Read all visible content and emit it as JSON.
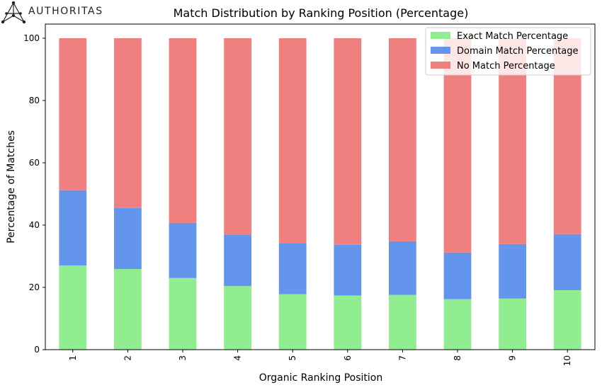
{
  "brand": {
    "name": "AUTHORITAS"
  },
  "chart_data": {
    "type": "bar",
    "stacked": true,
    "title": "Match Distribution by Ranking Position (Percentage)",
    "xlabel": "Organic Ranking Position",
    "ylabel": "Percentage of Matches",
    "categories": [
      "1",
      "2",
      "3",
      "4",
      "5",
      "6",
      "7",
      "8",
      "9",
      "10"
    ],
    "ylim": [
      0,
      100
    ],
    "yticks": [
      0,
      20,
      40,
      60,
      80,
      100
    ],
    "grid": false,
    "legend_position": "top-right",
    "series": [
      {
        "name": "Exact Match Percentage",
        "color": "#90ee90",
        "values": [
          27.0,
          25.9,
          23.0,
          20.4,
          17.8,
          17.4,
          17.6,
          16.2,
          16.4,
          19.1
        ]
      },
      {
        "name": "Domain Match Percentage",
        "color": "#6495ed",
        "values": [
          24.2,
          19.6,
          17.7,
          16.5,
          16.3,
          16.3,
          17.2,
          15.0,
          17.5,
          18.0
        ]
      },
      {
        "name": "No Match Percentage",
        "color": "#f08080",
        "values": [
          48.8,
          54.5,
          59.3,
          63.1,
          65.9,
          66.3,
          65.2,
          68.8,
          66.1,
          62.9
        ]
      }
    ]
  }
}
